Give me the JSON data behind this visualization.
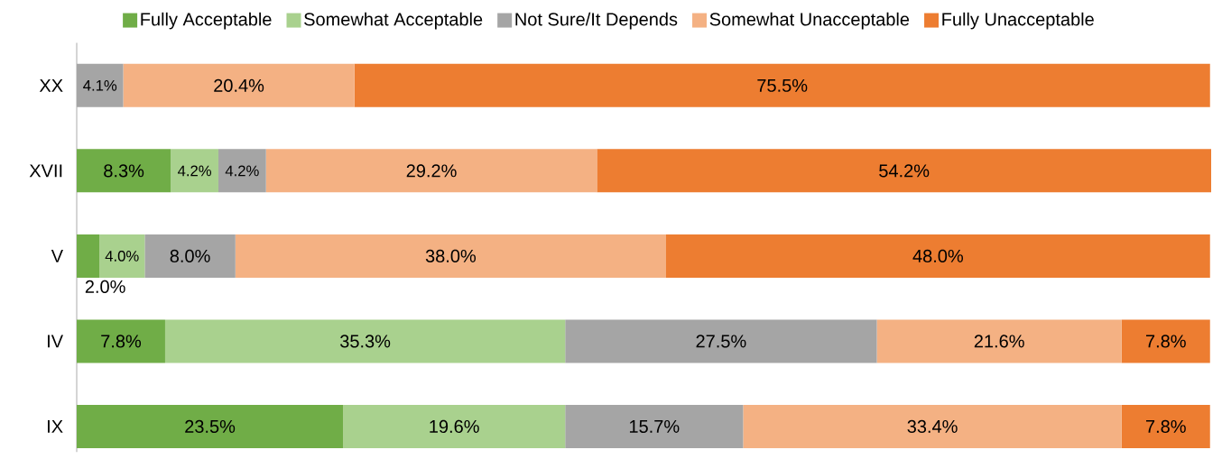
{
  "chart_data": {
    "type": "bar",
    "orientation": "horizontal",
    "stacked": true,
    "legend": "top",
    "categories": [
      "XX",
      "XVII",
      "V",
      "IV",
      "IX"
    ],
    "series": [
      {
        "name": "Fully Acceptable",
        "color": "#70ad47",
        "values": [
          0,
          8.3,
          2.0,
          7.8,
          23.5
        ],
        "value_labels": [
          null,
          "8.3%",
          "2.0%",
          "7.8%",
          "23.5%"
        ]
      },
      {
        "name": "Somewhat Acceptable",
        "color": "#a9d18e",
        "values": [
          0,
          4.2,
          4.0,
          35.3,
          19.6
        ],
        "value_labels": [
          null,
          "4.2%",
          "4.0%",
          "35.3%",
          "19.6%"
        ]
      },
      {
        "name": "Not Sure/It Depends",
        "color": "#a5a5a5",
        "values": [
          4.1,
          4.2,
          8.0,
          27.5,
          15.7
        ],
        "value_labels": [
          "4.1%",
          "4.2%",
          "8.0%",
          "27.5%",
          "15.7%"
        ]
      },
      {
        "name": "Somewhat Unacceptable",
        "color": "#f4b183",
        "values": [
          20.4,
          29.2,
          38.0,
          21.6,
          33.4
        ],
        "value_labels": [
          "20.4%",
          "29.2%",
          "38.0%",
          "21.6%",
          "33.4%"
        ]
      },
      {
        "name": "Fully Unacceptable",
        "color": "#ed7d31",
        "values": [
          75.5,
          54.2,
          48.0,
          7.8,
          7.8
        ],
        "value_labels": [
          "75.5%",
          "54.2%",
          "48.0%",
          "7.8%",
          "7.8%"
        ]
      }
    ]
  }
}
